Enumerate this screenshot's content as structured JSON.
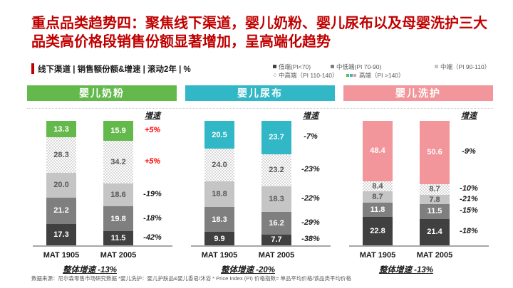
{
  "slide": {
    "title": "重点品类趋势四：聚焦线下渠道，婴儿奶粉、婴儿尿布以及母婴洗护三大品类高价格段销售份额显著增加，呈高端化趋势",
    "subheader": "线下渠道 | 销售额份额&增速 | 滚动2年 | %",
    "footer": "数据来源：尼尔森零售市场研究数据 *婴儿洗护：婴儿护肤品&婴儿香皂/沐浴 * Price Index (PI) 价格指数= 单品平均价格/该品类平均价格"
  },
  "colors": {
    "title_red": "#C00000",
    "positive_growth": "#FF0000",
    "negative_growth": "#1a1a1a",
    "baseline_gray": "#A6A6A6",
    "tier_low": "#404040",
    "tier_midlow": "#7F7F7F",
    "tier_mid": "#C5C5C5",
    "tier_midhigh_pattern": "#D8D8D8",
    "accent_milk": "#64B94C",
    "accent_diaper": "#31B7C5",
    "accent_wash": "#F2969B"
  },
  "legend": {
    "rows": [
      [
        {
          "label": "低端(PI<70)",
          "marker": "solid",
          "color": "#404040"
        },
        {
          "label": "中低端(PI 70-90)",
          "marker": "solid",
          "color": "#7F7F7F"
        },
        {
          "label": "中端（PI 90-110）",
          "marker": "solid",
          "color": "#C5C5C5"
        }
      ],
      [
        {
          "label": "中高端（PI 110-140）",
          "marker": "pattern"
        },
        {
          "label": "高端（PI >140）",
          "marker": "multi",
          "colors": [
            "#64B94C",
            "#31B7C5",
            "#F2969B"
          ]
        }
      ]
    ]
  },
  "chart_data": [
    {
      "type": "stacked-bar",
      "title": "婴儿奶粉",
      "accent_color": "#64B94C",
      "categories": [
        "MAT 1905",
        "MAT 2005"
      ],
      "series": [
        {
          "name": "低端(PI<70)",
          "style": "low",
          "values": [
            17.3,
            11.5
          ]
        },
        {
          "name": "中低端(PI 70-90)",
          "style": "midlow",
          "values": [
            21.2,
            19.8
          ]
        },
        {
          "name": "中端（PI 90-110）",
          "style": "mid",
          "values": [
            20.0,
            18.6
          ]
        },
        {
          "name": "中高端（PI 110-140）",
          "style": "pattern",
          "values": [
            28.3,
            34.2
          ]
        },
        {
          "name": "高端（PI >140）",
          "style": "accent",
          "values": [
            13.3,
            15.9
          ]
        }
      ],
      "growth_header": "增速",
      "growth": [
        "-42%",
        "-18%",
        "-19%",
        "+5%",
        "+5%"
      ],
      "overall_growth": "整体增速 -13%",
      "unit": "%",
      "ylim": [
        0,
        100
      ]
    },
    {
      "type": "stacked-bar",
      "title": "婴儿尿布",
      "accent_color": "#31B7C5",
      "categories": [
        "MAT 1905",
        "MAT 2005"
      ],
      "series": [
        {
          "name": "低端(PI<70)",
          "style": "low",
          "values": [
            9.9,
            7.7
          ]
        },
        {
          "name": "中低端(PI 70-90)",
          "style": "midlow",
          "values": [
            18.3,
            16.2
          ]
        },
        {
          "name": "中端（PI 90-110）",
          "style": "mid",
          "values": [
            18.8,
            18.3
          ]
        },
        {
          "name": "中高端（PI 110-140）",
          "style": "pattern",
          "values": [
            24.0,
            23.2
          ]
        },
        {
          "name": "高端（PI >140）",
          "style": "accent",
          "values": [
            20.5,
            23.7
          ]
        }
      ],
      "growth_header": "增速",
      "growth": [
        "-38%",
        "-29%",
        "-22%",
        "-23%",
        "-7%"
      ],
      "overall_growth": "整体增速 -20%",
      "unit": "%",
      "ylim": [
        0,
        100
      ]
    },
    {
      "type": "stacked-bar",
      "title": "婴儿洗护",
      "accent_color": "#F2969B",
      "categories": [
        "MAT 1905",
        "MAT 2005"
      ],
      "series": [
        {
          "name": "低端(PI<70)",
          "style": "low",
          "values": [
            22.8,
            21.4
          ]
        },
        {
          "name": "中低端(PI 70-90)",
          "style": "midlow",
          "values": [
            11.8,
            11.5
          ]
        },
        {
          "name": "中端（PI 90-110）",
          "style": "mid",
          "values": [
            8.7,
            7.8
          ]
        },
        {
          "name": "中高端（PI 110-140）",
          "style": "pattern",
          "values": [
            8.4,
            8.7
          ]
        },
        {
          "name": "高端（PI >140）",
          "style": "accent",
          "values": [
            48.4,
            50.6
          ]
        }
      ],
      "growth_header": "增速",
      "growth": [
        "-18%",
        "-15%",
        "-21%",
        "-10%",
        "-9%"
      ],
      "overall_growth": "整体增速 -13%",
      "unit": "%",
      "ylim": [
        0,
        100
      ]
    }
  ]
}
